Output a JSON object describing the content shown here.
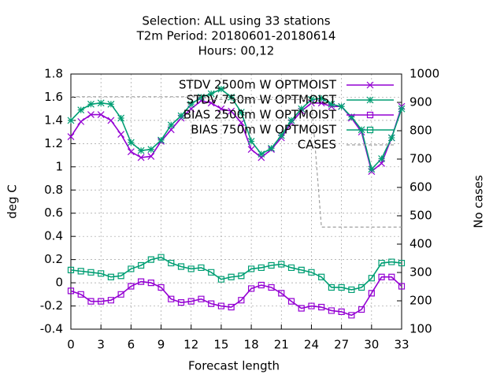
{
  "chart_data": {
    "type": "line",
    "title": [
      "Selection: ALL using    33 stations",
      "T2m   Period: 20180601-20180614",
      "Hours:  00,12"
    ],
    "xlabel": "Forecast length",
    "ylabel": "deg C",
    "y2label": "No cases",
    "x": [
      0,
      1,
      2,
      3,
      4,
      5,
      6,
      7,
      8,
      9,
      10,
      11,
      12,
      13,
      14,
      15,
      16,
      17,
      18,
      19,
      20,
      21,
      22,
      23,
      24,
      25,
      26,
      27,
      28,
      29,
      30,
      31,
      32,
      33
    ],
    "xlim": [
      0,
      33
    ],
    "xticks": [
      0,
      3,
      6,
      9,
      12,
      15,
      18,
      21,
      24,
      27,
      30,
      33
    ],
    "ylim": [
      -0.4,
      1.8
    ],
    "yticks": [
      -0.4,
      -0.2,
      0,
      0.2,
      0.4,
      0.6,
      0.8,
      1,
      1.2,
      1.4,
      1.6,
      1.8
    ],
    "y2lim": [
      100,
      1000
    ],
    "y2ticks": [
      100,
      200,
      300,
      400,
      500,
      600,
      700,
      800,
      900,
      1000
    ],
    "grid": true,
    "legend": "top-right",
    "series": [
      {
        "name": "STDV 2500m W OPTMOIST",
        "color": "#9400d3",
        "marker": "x",
        "values": [
          1.26,
          1.39,
          1.45,
          1.45,
          1.4,
          1.28,
          1.13,
          1.08,
          1.09,
          1.22,
          1.32,
          1.42,
          1.5,
          1.57,
          1.55,
          1.5,
          1.48,
          1.38,
          1.15,
          1.08,
          1.15,
          1.25,
          1.38,
          1.48,
          1.55,
          1.55,
          1.52,
          1.52,
          1.42,
          1.3,
          0.96,
          1.03,
          1.25,
          1.52
        ]
      },
      {
        "name": "STDV 750m W OPTMOIST",
        "color": "#009e73",
        "marker": "star",
        "values": [
          1.4,
          1.49,
          1.54,
          1.55,
          1.54,
          1.42,
          1.21,
          1.14,
          1.15,
          1.23,
          1.36,
          1.44,
          1.54,
          1.6,
          1.63,
          1.67,
          1.6,
          1.47,
          1.22,
          1.11,
          1.16,
          1.27,
          1.4,
          1.5,
          1.58,
          1.59,
          1.54,
          1.52,
          1.43,
          1.32,
          0.98,
          1.07,
          1.25,
          1.5
        ]
      },
      {
        "name": "BIAS 2500m W OPTMOIST",
        "color": "#9400d3",
        "marker": "square",
        "values": [
          -0.07,
          -0.1,
          -0.16,
          -0.16,
          -0.15,
          -0.1,
          -0.03,
          0.01,
          0.0,
          -0.04,
          -0.14,
          -0.17,
          -0.16,
          -0.14,
          -0.18,
          -0.2,
          -0.21,
          -0.15,
          -0.05,
          -0.02,
          -0.04,
          -0.09,
          -0.16,
          -0.22,
          -0.2,
          -0.21,
          -0.24,
          -0.25,
          -0.28,
          -0.23,
          -0.09,
          0.05,
          0.05,
          -0.03
        ]
      },
      {
        "name": "BIAS 750m W OPTMOIST",
        "color": "#009e73",
        "marker": "square",
        "values": [
          0.11,
          0.1,
          0.09,
          0.08,
          0.05,
          0.06,
          0.12,
          0.15,
          0.2,
          0.22,
          0.17,
          0.14,
          0.12,
          0.13,
          0.09,
          0.03,
          0.05,
          0.06,
          0.12,
          0.13,
          0.15,
          0.16,
          0.13,
          0.11,
          0.09,
          0.05,
          -0.04,
          -0.04,
          -0.06,
          -0.04,
          0.04,
          0.17,
          0.18,
          0.17
        ]
      },
      {
        "name": "CASES",
        "color": "#a0a0a0",
        "marker": "none",
        "axis": "y2",
        "dashed": true,
        "values": [
          920,
          920,
          920,
          920,
          920,
          920,
          920,
          920,
          920,
          920,
          920,
          920,
          920,
          920,
          910,
          910,
          910,
          910,
          910,
          910,
          910,
          910,
          910,
          910,
          910,
          460,
          460,
          460,
          460,
          460,
          460,
          460,
          460,
          460
        ]
      }
    ]
  }
}
